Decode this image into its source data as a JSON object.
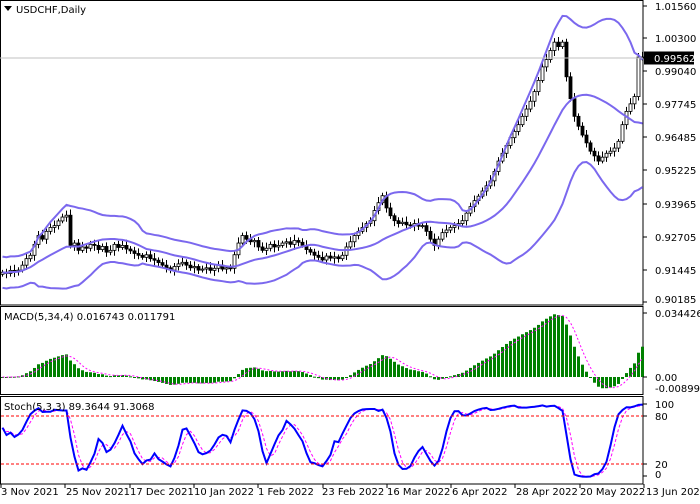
{
  "header": {
    "menu_icon": "triangle-down-icon",
    "symbol_timeframe": "USDCHF,Daily"
  },
  "colors": {
    "bands": "#7B68EE",
    "macd_bars": "#008000",
    "signal": "#FF00FF",
    "stoch_main": "#0000FF",
    "levels": "#FF0000",
    "price_tag_bg": "#000000"
  },
  "price_axis": {
    "ticks": [
      "1.01560",
      "1.00300",
      "0.99040",
      "0.97745",
      "0.96485",
      "0.95225",
      "0.93965",
      "0.92705",
      "0.91445",
      "0.90185"
    ],
    "current_price": "0.99562"
  },
  "macd": {
    "label": "MACD(5,34,4) 0.016743 0.011791",
    "axis_max": "0.034426",
    "axis_zero": "0.00",
    "axis_min": "-0.008995"
  },
  "stoch": {
    "label": "Stoch(5,3,3) 89.3644 91.3068",
    "levels": [
      "100",
      "80",
      "20",
      "0"
    ]
  },
  "time_axis": [
    "3 Nov 2021",
    "25 Nov 2021",
    "17 Dec 2021",
    "10 Jan 2022",
    "1 Feb 2022",
    "23 Feb 2022",
    "16 Mar 2022",
    "6 Apr 2022",
    "28 Apr 2022",
    "20 May 2022",
    "13 Jun 2022"
  ],
  "chart_data": {
    "type": "candlestick",
    "symbol": "USDCHF",
    "timeframe": "Daily",
    "ylim": [
      0.90185,
      1.0156
    ],
    "indicators": [
      "Bollinger Bands",
      "MACD(5,34,4)",
      "Stoch(5,3,3)"
    ],
    "close": [
      0.9133,
      0.9128,
      0.914,
      0.9135,
      0.9141,
      0.916,
      0.9185,
      0.9198,
      0.924,
      0.9274,
      0.926,
      0.929,
      0.9305,
      0.9312,
      0.933,
      0.9345,
      0.9352,
      0.9236,
      0.9245,
      0.9217,
      0.923,
      0.9225,
      0.924,
      0.9236,
      0.922,
      0.9232,
      0.921,
      0.9217,
      0.924,
      0.9228,
      0.9236,
      0.9222,
      0.9215,
      0.9205,
      0.9198,
      0.919,
      0.92,
      0.9185,
      0.9179,
      0.917,
      0.916,
      0.915,
      0.9141,
      0.9155,
      0.9165,
      0.9171,
      0.916,
      0.915,
      0.9155,
      0.9141,
      0.9145,
      0.915,
      0.914,
      0.9148,
      0.916,
      0.9145,
      0.915,
      0.9148,
      0.92,
      0.9245,
      0.9274,
      0.926,
      0.925,
      0.9255,
      0.923,
      0.9217,
      0.9225,
      0.924,
      0.923,
      0.9236,
      0.9245,
      0.925,
      0.924,
      0.9255,
      0.9248,
      0.9236,
      0.922,
      0.921,
      0.9198,
      0.919,
      0.918,
      0.9195,
      0.9187,
      0.9192,
      0.9185,
      0.9198,
      0.923,
      0.925,
      0.9274,
      0.929,
      0.9305,
      0.932,
      0.9331,
      0.937,
      0.94,
      0.9427,
      0.938,
      0.935,
      0.9331,
      0.932,
      0.9325,
      0.9315,
      0.9312,
      0.932,
      0.931,
      0.9312,
      0.929,
      0.926,
      0.9236,
      0.926,
      0.9285,
      0.9295,
      0.9305,
      0.9312,
      0.932,
      0.9331,
      0.936,
      0.9385,
      0.9408,
      0.9425,
      0.9445,
      0.9465,
      0.9484,
      0.952,
      0.956,
      0.959,
      0.962,
      0.965,
      0.9674,
      0.97,
      0.9732,
      0.976,
      0.979,
      0.9827,
      0.987,
      0.9922,
      0.995,
      0.9985,
      1.0017,
      1.0,
      1.0017,
      0.9884,
      0.98,
      0.9732,
      0.9694,
      0.966,
      0.963,
      0.9598,
      0.958,
      0.956,
      0.9575,
      0.959,
      0.9598,
      0.961,
      0.9636,
      0.97,
      0.9751,
      0.978,
      0.9808,
      0.996,
      0.9956
    ]
  }
}
